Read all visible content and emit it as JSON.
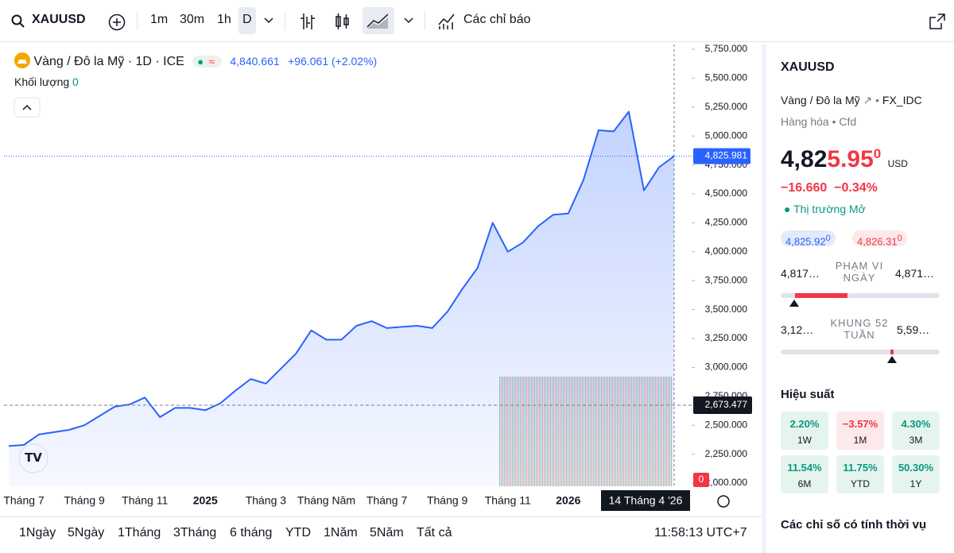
{
  "toolbar": {
    "symbol": "XAUUSD",
    "intervals": [
      "1m",
      "30m",
      "1h",
      "D"
    ],
    "indicators": "Các chỉ báo"
  },
  "chart_data": {
    "type": "line",
    "title": "Vàng / Đô la Mỹ · 1D · ICE",
    "price": "4,840.661",
    "change": "+96.061 (+2.02%)",
    "volume_label": "Khối lượng",
    "volume_value": "0",
    "volume_marker": "0",
    "color": "#2962ff",
    "categories": [
      null,
      "Tháng 7",
      null,
      null,
      null,
      "Tháng 9",
      null,
      null,
      null,
      "Tháng 11",
      null,
      null,
      null,
      "2025",
      null,
      null,
      null,
      "Tháng 3",
      null,
      null,
      null,
      "Tháng Năm",
      null,
      null,
      null,
      "Tháng 7",
      null,
      null,
      null,
      "Tháng 9",
      null,
      null,
      null,
      "Tháng 11",
      null,
      null,
      null,
      "2026",
      null,
      null,
      null,
      null,
      null,
      null,
      "14 Tháng 4 '26"
    ],
    "values": [
      2320,
      2330,
      2420,
      2440,
      2460,
      2500,
      2580,
      2660,
      2680,
      2740,
      2570,
      2650,
      2650,
      2630,
      2690,
      2800,
      2900,
      2860,
      2990,
      3120,
      3320,
      3240,
      3240,
      3360,
      3400,
      3340,
      3350,
      3360,
      3340,
      3480,
      3680,
      3860,
      4250,
      4000,
      4080,
      4220,
      4320,
      4330,
      4620,
      5050,
      5040,
      5210,
      4530,
      4730,
      4826
    ],
    "ylim": [
      2000,
      5750
    ],
    "yticks": [
      {
        "value": 2000,
        "label": "2,000.000"
      },
      {
        "value": 2250,
        "label": "2,250.000"
      },
      {
        "value": 2500,
        "label": "2,500.000"
      },
      {
        "value": 2750,
        "label": "2,750.000"
      },
      {
        "value": 3000,
        "label": "3,000.000"
      },
      {
        "value": 3250,
        "label": "3,250.000"
      },
      {
        "value": 3500,
        "label": "3,500.000"
      },
      {
        "value": 3750,
        "label": "3,750.000"
      },
      {
        "value": 4000,
        "label": "4,000.000"
      },
      {
        "value": 4250,
        "label": "4,250.000"
      },
      {
        "value": 4500,
        "label": "4,500.000"
      },
      {
        "value": 4750,
        "label": "4,750.000"
      },
      {
        "value": 5000,
        "label": "5,000.000"
      },
      {
        "value": 5250,
        "label": "5,250.000"
      },
      {
        "value": 5500,
        "label": "5,500.000"
      },
      {
        "value": 5750,
        "label": "5,750.000"
      }
    ],
    "grid": false,
    "last_price": {
      "value": 4825.981,
      "label": "4,825.981"
    },
    "crosshair": {
      "value": 2673.477,
      "label": "2,673.477"
    }
  },
  "range_bar": {
    "ranges": [
      "1Ngày",
      "5Ngày",
      "1Tháng",
      "3Tháng",
      "6 tháng",
      "YTD",
      "1Năm",
      "5Năm",
      "Tất cả"
    ],
    "time": "11:58:13 UTC+7"
  },
  "panel": {
    "symbol": "XAUUSD",
    "name": "Vàng / Đô la Mỹ",
    "exchange": "FX_IDC",
    "category": "Hàng hóa",
    "kind": "Cfd",
    "price_main": "4,82",
    "price_accent": "5.95",
    "price_sup": "0",
    "currency": "USD",
    "change": "−16.660",
    "change_pct": "−0.34%",
    "status": "Thị trường Mở",
    "bid": "4,825.92",
    "bid_sup": "0",
    "ask": "4,826.31",
    "ask_sup": "0",
    "day_low": "4,817…",
    "day_label": "PHẠM VI NGÀY",
    "day_high": "4,871…",
    "year_low": "3,12…",
    "year_label": "KHUNG 52 TUẦN",
    "year_high": "5,59…",
    "performance_title": "Hiệu suất",
    "performance": [
      {
        "value": "2.20%",
        "period": "1W"
      },
      {
        "value": "−3.57%",
        "period": "1M"
      },
      {
        "value": "4.30%",
        "period": "3M"
      },
      {
        "value": "11.54%",
        "period": "6M"
      },
      {
        "value": "11.75%",
        "period": "YTD"
      },
      {
        "value": "50.30%",
        "period": "1Y"
      }
    ],
    "seasonal_title": "Các chỉ số có tính thời vụ"
  }
}
